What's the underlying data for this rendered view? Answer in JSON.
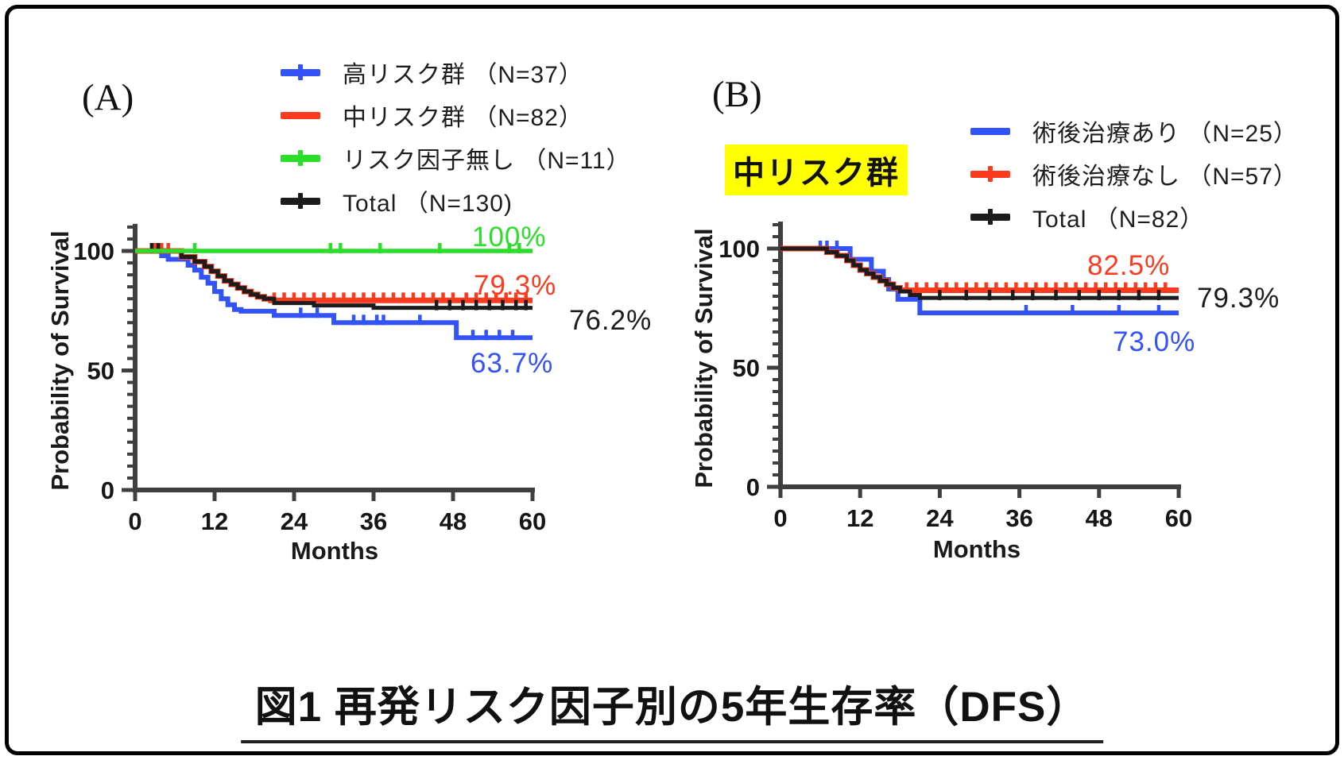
{
  "figure_title": "図1 再発リスク因子別の5年生存率（DFS）",
  "colors": {
    "blue": "#3352f7",
    "red": "#fb3a1e",
    "green": "#2ade2a",
    "black": "#1c1c1c",
    "axis": "#3f3f3f",
    "highlight_bg": "#ffff00"
  },
  "chart_data": [
    {
      "type": "line",
      "panel_label": "(A)",
      "xlabel": "Months",
      "ylabel": "Probability of Survival",
      "xlim": [
        0,
        60
      ],
      "ylim": [
        0,
        100
      ],
      "xticks": [
        0,
        12,
        24,
        36,
        48,
        60
      ],
      "yticks": [
        0,
        50,
        100
      ],
      "legend_position": "top",
      "legend_order": [
        0,
        1,
        3,
        2
      ],
      "series": [
        {
          "name": "高リスク群 （N=37）",
          "color": "blue",
          "final_label": "63.7%",
          "legend_tick": true,
          "steps": [
            [
              0,
              100
            ],
            [
              4,
              98
            ],
            [
              5,
              96.5
            ],
            [
              8,
              94
            ],
            [
              9,
              92
            ],
            [
              10,
              89
            ],
            [
              11,
              86.5
            ],
            [
              12,
              83
            ],
            [
              13,
              80
            ],
            [
              14,
              77.5
            ],
            [
              15,
              75.5
            ],
            [
              16,
              74.8
            ],
            [
              21,
              73
            ],
            [
              30,
              70
            ],
            [
              48.5,
              63.7
            ],
            [
              60,
              63.7
            ]
          ],
          "censors": [
            3,
            25,
            27.5,
            33,
            34.5,
            36.5,
            37.5,
            43,
            51,
            53,
            55,
            57
          ]
        },
        {
          "name": "中リスク群 （N=82）",
          "color": "red",
          "final_label": "79.3%",
          "legend_tick": false,
          "steps": [
            [
              0,
              100
            ],
            [
              7,
              97.5
            ],
            [
              9,
              95.5
            ],
            [
              10.5,
              93.5
            ],
            [
              11.5,
              91.5
            ],
            [
              12.5,
              89.5
            ],
            [
              13.5,
              87.5
            ],
            [
              14.5,
              86
            ],
            [
              15.5,
              84.5
            ],
            [
              16.5,
              83
            ],
            [
              17.5,
              81.8
            ],
            [
              18.5,
              80.8
            ],
            [
              19.5,
              80
            ],
            [
              20.5,
              79.3
            ],
            [
              60,
              79.3
            ]
          ],
          "censors": [
            3,
            4,
            5,
            21,
            22.5,
            24,
            25.5,
            27,
            28.5,
            30,
            31.5,
            33,
            34.5,
            36,
            37.5,
            39,
            40.5,
            42,
            43.5,
            45,
            46.5,
            48,
            50,
            51.5,
            53,
            54.5,
            56,
            57.5,
            59
          ]
        },
        {
          "name": "Total （N=130)",
          "color": "black",
          "final_label": "76.2%",
          "legend_tick": true,
          "steps": [
            [
              0,
              100
            ],
            [
              7,
              97.5
            ],
            [
              9,
              95.5
            ],
            [
              10.5,
              93.5
            ],
            [
              11.5,
              91.5
            ],
            [
              12.5,
              89.5
            ],
            [
              13.5,
              87.5
            ],
            [
              14.5,
              86
            ],
            [
              15.5,
              84.5
            ],
            [
              16.5,
              83
            ],
            [
              17.5,
              81.8
            ],
            [
              18.5,
              80.8
            ],
            [
              19.5,
              80
            ],
            [
              21,
              78.2
            ],
            [
              27,
              77.2
            ],
            [
              36,
              76.2
            ],
            [
              60,
              76.2
            ]
          ],
          "censors": [
            2.5,
            3.5,
            45.5,
            47.5,
            49.5,
            51.5,
            53.5,
            55.5,
            57.5,
            59
          ]
        },
        {
          "name": "リスク因子無し （N=11）",
          "color": "green",
          "final_label": "100%",
          "legend_tick": true,
          "steps": [
            [
              0,
              100
            ],
            [
              60,
              100
            ]
          ],
          "censors": [
            9,
            29.5,
            31,
            37,
            46,
            56.5,
            58
          ]
        }
      ]
    },
    {
      "type": "line",
      "panel_label": "(B)",
      "panel_highlight": "中リスク群",
      "xlabel": "Months",
      "ylabel": "Probability of Survival",
      "xlim": [
        0,
        60
      ],
      "ylim": [
        0,
        100
      ],
      "xticks": [
        0,
        12,
        24,
        36,
        48,
        60
      ],
      "yticks": [
        0,
        50,
        100
      ],
      "legend_position": "top",
      "legend_order": [
        0,
        1,
        2
      ],
      "series": [
        {
          "name": "術後治療あり （N=25）",
          "color": "blue",
          "final_label": "73.0%",
          "legend_tick": false,
          "steps": [
            [
              0,
              100
            ],
            [
              10.5,
              95.5
            ],
            [
              13.7,
              90.5
            ],
            [
              15.5,
              87
            ],
            [
              16.3,
              83
            ],
            [
              17.7,
              78.7
            ],
            [
              21,
              73
            ],
            [
              60,
              73
            ]
          ],
          "censors": [
            6,
            7,
            8.5,
            37,
            44,
            51,
            57
          ]
        },
        {
          "name": "術後治療なし （N=57）",
          "color": "red",
          "final_label": "82.5%",
          "legend_tick": true,
          "steps": [
            [
              0,
              100
            ],
            [
              7,
              98.5
            ],
            [
              8.5,
              97
            ],
            [
              10,
              95
            ],
            [
              11,
              93
            ],
            [
              12,
              91
            ],
            [
              13,
              89.5
            ],
            [
              14,
              88
            ],
            [
              15,
              86.5
            ],
            [
              16,
              85
            ],
            [
              17,
              83.5
            ],
            [
              18,
              82.5
            ],
            [
              60,
              82.5
            ]
          ],
          "censors": [
            19,
            20.5,
            22,
            23.5,
            25,
            26.5,
            28,
            29.5,
            31,
            32.5,
            34,
            35.5,
            37,
            38.5,
            40,
            41.5,
            43,
            44.5,
            46,
            47.5,
            49,
            50.5,
            52,
            53.5,
            55,
            56.5,
            58
          ]
        },
        {
          "name": "Total （N=82）",
          "color": "black",
          "final_label": "79.3%",
          "legend_tick": true,
          "steps": [
            [
              0,
              100
            ],
            [
              7,
              98.5
            ],
            [
              8.5,
              97
            ],
            [
              10,
              95
            ],
            [
              11,
              93
            ],
            [
              12,
              91
            ],
            [
              13,
              89.5
            ],
            [
              14,
              88
            ],
            [
              15,
              86.5
            ],
            [
              16,
              85
            ],
            [
              17,
              83.5
            ],
            [
              18,
              82
            ],
            [
              19.5,
              80.5
            ],
            [
              21,
              79.3
            ],
            [
              60,
              79.3
            ]
          ],
          "censors": [
            24,
            28,
            31.5,
            35,
            38,
            41.5,
            45,
            48,
            51,
            54,
            57
          ]
        }
      ]
    }
  ]
}
